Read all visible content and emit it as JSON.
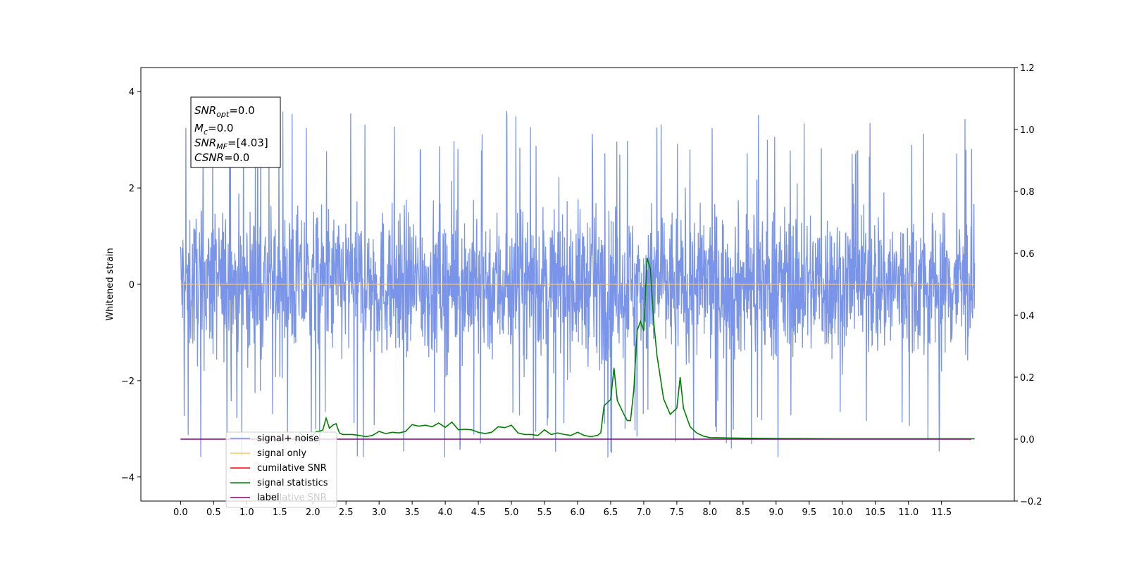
{
  "chart_data": {
    "type": "line",
    "title": "",
    "xlabel": "",
    "ylabel": "Whitened strain",
    "xlim": [
      -0.6,
      12.6
    ],
    "ylim": [
      -4.5,
      4.5
    ],
    "y2lim": [
      -0.2,
      1.2
    ],
    "xticks": [
      0.0,
      0.5,
      1.0,
      1.5,
      2.0,
      2.5,
      3.0,
      3.5,
      4.0,
      4.5,
      5.0,
      5.5,
      6.0,
      6.5,
      7.0,
      7.5,
      8.0,
      8.5,
      9.0,
      9.5,
      10.0,
      10.5,
      11.0,
      11.5
    ],
    "xtick_labels": [
      "0.0",
      "0.5",
      "1.0",
      "1.5",
      "2.0",
      "2.5",
      "3.0",
      "3.5",
      "4.0",
      "4.5",
      "5.0",
      "5.5",
      "6.0",
      "6.5",
      "7.0",
      "7.5",
      "8.0",
      "8.5",
      "9.0",
      "9.5",
      "10.0",
      "10.5",
      "11.0",
      "11.5"
    ],
    "yticks": [
      -4,
      -2,
      0,
      2,
      4
    ],
    "ytick_labels": [
      "−4",
      "−2",
      "0",
      "2",
      "4"
    ],
    "y2ticks": [
      -0.2,
      0.0,
      0.2,
      0.4,
      0.6,
      0.8,
      1.0,
      1.2
    ],
    "y2tick_labels": [
      "−0.2",
      "0.0",
      "0.2",
      "0.4",
      "0.6",
      "0.8",
      "1.0",
      "1.2"
    ],
    "grid": false,
    "legend_position": "lower-left",
    "noise": {
      "x_start": 0.0,
      "x_end": 12.0,
      "samples": 2400,
      "typical_range": [
        -2.2,
        2.2
      ],
      "max": 4.12,
      "min": -4.1
    },
    "series": [
      {
        "name": "signal+ noise",
        "color": "#7994e8",
        "axis": "left",
        "kind": "noise"
      },
      {
        "name": "signal only",
        "color": "#ffc266",
        "axis": "left",
        "x": [
          0.0,
          12.0
        ],
        "y": [
          0.0,
          0.0
        ]
      },
      {
        "name": "cumilative SNR",
        "color": "#ff0000",
        "axis": "right",
        "x": [],
        "y": []
      },
      {
        "name": "signal statistics",
        "color": "#008000",
        "axis": "right",
        "x": [
          1.8,
          1.85,
          1.9,
          1.95,
          2.0,
          2.05,
          2.1,
          2.15,
          2.2,
          2.25,
          2.3,
          2.35,
          2.4,
          2.45,
          2.5,
          2.6,
          2.7,
          2.8,
          2.9,
          3.0,
          3.1,
          3.2,
          3.3,
          3.4,
          3.5,
          3.6,
          3.7,
          3.8,
          3.9,
          4.0,
          4.1,
          4.2,
          4.3,
          4.4,
          4.5,
          4.6,
          4.7,
          4.8,
          4.9,
          5.0,
          5.1,
          5.2,
          5.3,
          5.4,
          5.5,
          5.6,
          5.7,
          5.8,
          5.9,
          6.0,
          6.1,
          6.2,
          6.3,
          6.35,
          6.4,
          6.5,
          6.55,
          6.6,
          6.7,
          6.75,
          6.8,
          6.85,
          6.9,
          6.95,
          7.0,
          7.05,
          7.1,
          7.15,
          7.2,
          7.3,
          7.4,
          7.45,
          7.5,
          7.55,
          7.6,
          7.7,
          7.8,
          7.9,
          8.0,
          8.5,
          9.0,
          10.0,
          11.0,
          12.0
        ],
        "y": [
          0.02,
          0.01,
          0.005,
          0.005,
          0.012,
          0.025,
          0.025,
          0.03,
          0.068,
          0.035,
          0.045,
          0.05,
          0.02,
          0.015,
          0.015,
          0.015,
          0.012,
          0.008,
          0.012,
          0.025,
          0.018,
          0.022,
          0.02,
          0.025,
          0.047,
          0.042,
          0.045,
          0.04,
          0.052,
          0.038,
          0.055,
          0.03,
          0.032,
          0.03,
          0.022,
          0.018,
          0.022,
          0.04,
          0.037,
          0.045,
          0.02,
          0.015,
          0.015,
          0.012,
          0.03,
          0.015,
          0.02,
          0.015,
          0.012,
          0.022,
          0.012,
          0.008,
          0.012,
          0.02,
          0.108,
          0.128,
          0.23,
          0.125,
          0.08,
          0.06,
          0.06,
          0.16,
          0.35,
          0.38,
          0.35,
          0.585,
          0.55,
          0.38,
          0.27,
          0.13,
          0.08,
          0.09,
          0.1,
          0.2,
          0.1,
          0.04,
          0.02,
          0.01,
          0.005,
          0.003,
          0.002,
          0.001,
          0.001,
          0.001
        ]
      },
      {
        "name": "label",
        "color": "#800080",
        "axis": "right",
        "x": [
          0.0,
          11.95
        ],
        "y": [
          0.0,
          0.0
        ]
      }
    ],
    "legend_ghost_text": "cumilative SNR",
    "annotation": {
      "lines": [
        {
          "label": "SNR",
          "sub": "opt",
          "value": "=0.0"
        },
        {
          "label": "M",
          "sub": "c",
          "value": "=0.0"
        },
        {
          "label": "SNR",
          "sub": "MF",
          "value": "=[4.03]"
        },
        {
          "label": "CSNR",
          "sub": "",
          "value": "=0.0"
        }
      ]
    }
  }
}
